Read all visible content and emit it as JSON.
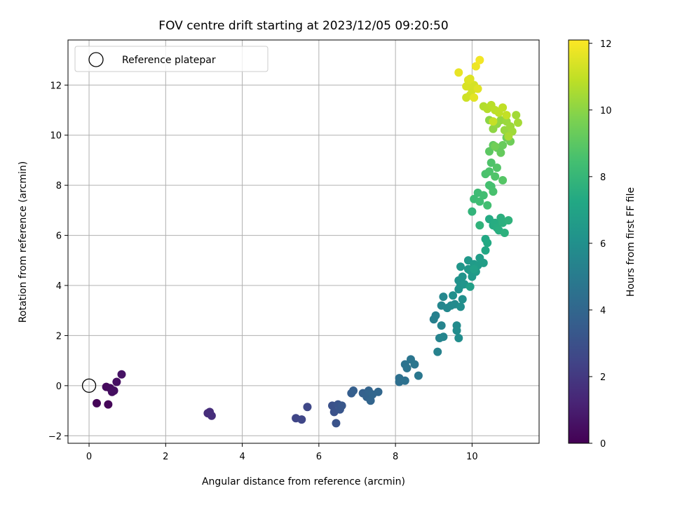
{
  "chart_data": {
    "type": "scatter",
    "title": "FOV centre drift starting at 2023/12/05 09:20:50",
    "xlabel": "Angular distance from reference (arcmin)",
    "ylabel": "Rotation from reference (arcmin)",
    "xlim": [
      -0.55,
      11.75
    ],
    "ylim": [
      -2.3,
      13.8
    ],
    "xticks": [
      0,
      2,
      4,
      6,
      8,
      10
    ],
    "yticks": [
      -2,
      0,
      2,
      4,
      6,
      8,
      10,
      12
    ],
    "grid": true,
    "legend": {
      "position": "top-left",
      "entries": [
        "Reference platepar"
      ]
    },
    "reference_point": {
      "x": 0,
      "y": 0,
      "label": "Reference platepar"
    },
    "colorbar": {
      "label": "Hours from first FF file",
      "range": [
        0,
        12.1
      ],
      "ticks": [
        0,
        2,
        4,
        6,
        8,
        10,
        12
      ],
      "colormap": "viridis"
    },
    "series": [
      {
        "points": [
          {
            "x": 0.2,
            "y": -0.7,
            "c": 0.1
          },
          {
            "x": 0.5,
            "y": -0.75,
            "c": 0.2
          },
          {
            "x": 0.45,
            "y": -0.05,
            "c": 0.3
          },
          {
            "x": 0.55,
            "y": -0.1,
            "c": 0.35
          },
          {
            "x": 0.6,
            "y": -0.25,
            "c": 0.4
          },
          {
            "x": 0.65,
            "y": -0.2,
            "c": 0.45
          },
          {
            "x": 0.72,
            "y": 0.15,
            "c": 0.5
          },
          {
            "x": 0.85,
            "y": 0.45,
            "c": 0.6
          },
          {
            "x": 3.1,
            "y": -1.1,
            "c": 1.5
          },
          {
            "x": 3.15,
            "y": -1.05,
            "c": 1.55
          },
          {
            "x": 3.2,
            "y": -1.2,
            "c": 1.6
          },
          {
            "x": 5.4,
            "y": -1.3,
            "c": 2.5
          },
          {
            "x": 5.55,
            "y": -1.35,
            "c": 2.55
          },
          {
            "x": 5.7,
            "y": -0.85,
            "c": 2.6
          },
          {
            "x": 6.35,
            "y": -0.8,
            "c": 3.0
          },
          {
            "x": 6.4,
            "y": -1.05,
            "c": 3.05
          },
          {
            "x": 6.45,
            "y": -1.5,
            "c": 3.1
          },
          {
            "x": 6.5,
            "y": -0.75,
            "c": 3.15
          },
          {
            "x": 6.55,
            "y": -0.95,
            "c": 3.2
          },
          {
            "x": 6.6,
            "y": -0.8,
            "c": 3.25
          },
          {
            "x": 6.85,
            "y": -0.3,
            "c": 3.6
          },
          {
            "x": 6.9,
            "y": -0.2,
            "c": 3.65
          },
          {
            "x": 7.15,
            "y": -0.3,
            "c": 3.75
          },
          {
            "x": 7.25,
            "y": -0.45,
            "c": 3.8
          },
          {
            "x": 7.3,
            "y": -0.2,
            "c": 3.85
          },
          {
            "x": 7.35,
            "y": -0.6,
            "c": 3.9
          },
          {
            "x": 7.4,
            "y": -0.35,
            "c": 3.95
          },
          {
            "x": 7.55,
            "y": -0.25,
            "c": 4.0
          },
          {
            "x": 8.1,
            "y": 0.15,
            "c": 4.4
          },
          {
            "x": 8.1,
            "y": 0.3,
            "c": 4.45
          },
          {
            "x": 8.25,
            "y": 0.2,
            "c": 4.5
          },
          {
            "x": 8.25,
            "y": 0.85,
            "c": 4.6
          },
          {
            "x": 8.3,
            "y": 0.7,
            "c": 4.65
          },
          {
            "x": 8.4,
            "y": 1.05,
            "c": 4.7
          },
          {
            "x": 8.5,
            "y": 0.85,
            "c": 4.75
          },
          {
            "x": 8.6,
            "y": 0.4,
            "c": 4.8
          },
          {
            "x": 9.0,
            "y": 2.65,
            "c": 5.2
          },
          {
            "x": 9.05,
            "y": 2.8,
            "c": 5.25
          },
          {
            "x": 9.1,
            "y": 1.35,
            "c": 5.3
          },
          {
            "x": 9.15,
            "y": 1.9,
            "c": 5.35
          },
          {
            "x": 9.2,
            "y": 2.4,
            "c": 5.4
          },
          {
            "x": 9.25,
            "y": 1.95,
            "c": 5.45
          },
          {
            "x": 9.2,
            "y": 3.2,
            "c": 5.5
          },
          {
            "x": 9.25,
            "y": 3.55,
            "c": 5.55
          },
          {
            "x": 9.35,
            "y": 3.1,
            "c": 5.6
          },
          {
            "x": 9.45,
            "y": 3.2,
            "c": 5.65
          },
          {
            "x": 9.55,
            "y": 3.25,
            "c": 5.7
          },
          {
            "x": 9.6,
            "y": 2.4,
            "c": 5.75
          },
          {
            "x": 9.6,
            "y": 2.2,
            "c": 5.8
          },
          {
            "x": 9.65,
            "y": 1.9,
            "c": 5.85
          },
          {
            "x": 9.7,
            "y": 3.15,
            "c": 5.9
          },
          {
            "x": 9.75,
            "y": 3.45,
            "c": 5.95
          },
          {
            "x": 9.5,
            "y": 3.6,
            "c": 6.0
          },
          {
            "x": 9.65,
            "y": 3.85,
            "c": 6.05
          },
          {
            "x": 9.65,
            "y": 4.2,
            "c": 6.1
          },
          {
            "x": 9.7,
            "y": 4.0,
            "c": 6.15
          },
          {
            "x": 9.75,
            "y": 4.35,
            "c": 6.2
          },
          {
            "x": 9.8,
            "y": 4.05,
            "c": 6.25
          },
          {
            "x": 9.7,
            "y": 4.75,
            "c": 6.3
          },
          {
            "x": 9.9,
            "y": 4.65,
            "c": 6.35
          },
          {
            "x": 9.9,
            "y": 5.0,
            "c": 6.4
          },
          {
            "x": 9.95,
            "y": 4.6,
            "c": 6.45
          },
          {
            "x": 10.0,
            "y": 4.35,
            "c": 6.5
          },
          {
            "x": 10.05,
            "y": 4.85,
            "c": 6.55
          },
          {
            "x": 10.1,
            "y": 4.55,
            "c": 6.6
          },
          {
            "x": 10.15,
            "y": 4.8,
            "c": 6.65
          },
          {
            "x": 10.2,
            "y": 5.1,
            "c": 6.7
          },
          {
            "x": 10.3,
            "y": 4.9,
            "c": 6.75
          },
          {
            "x": 9.95,
            "y": 3.95,
            "c": 6.8
          },
          {
            "x": 10.05,
            "y": 4.65,
            "c": 6.85
          },
          {
            "x": 10.35,
            "y": 5.4,
            "c": 7.2
          },
          {
            "x": 10.35,
            "y": 5.85,
            "c": 7.25
          },
          {
            "x": 10.4,
            "y": 5.7,
            "c": 7.3
          },
          {
            "x": 10.45,
            "y": 6.65,
            "c": 7.35
          },
          {
            "x": 10.55,
            "y": 6.4,
            "c": 7.4
          },
          {
            "x": 10.6,
            "y": 6.5,
            "c": 7.45
          },
          {
            "x": 10.65,
            "y": 6.3,
            "c": 7.5
          },
          {
            "x": 10.7,
            "y": 6.2,
            "c": 7.55
          },
          {
            "x": 10.75,
            "y": 6.7,
            "c": 7.6
          },
          {
            "x": 10.8,
            "y": 6.5,
            "c": 7.65
          },
          {
            "x": 10.85,
            "y": 6.1,
            "c": 7.7
          },
          {
            "x": 10.95,
            "y": 6.6,
            "c": 7.75
          },
          {
            "x": 10.2,
            "y": 6.4,
            "c": 7.8
          },
          {
            "x": 10.0,
            "y": 6.95,
            "c": 7.85
          },
          {
            "x": 10.05,
            "y": 7.45,
            "c": 8.2
          },
          {
            "x": 10.15,
            "y": 7.7,
            "c": 8.25
          },
          {
            "x": 10.2,
            "y": 7.35,
            "c": 8.3
          },
          {
            "x": 10.3,
            "y": 7.6,
            "c": 8.35
          },
          {
            "x": 10.4,
            "y": 7.2,
            "c": 8.4
          },
          {
            "x": 10.45,
            "y": 8.0,
            "c": 8.45
          },
          {
            "x": 10.5,
            "y": 7.95,
            "c": 8.5
          },
          {
            "x": 10.55,
            "y": 7.75,
            "c": 8.55
          },
          {
            "x": 10.35,
            "y": 8.45,
            "c": 8.6
          },
          {
            "x": 10.45,
            "y": 8.55,
            "c": 8.65
          },
          {
            "x": 10.5,
            "y": 8.9,
            "c": 8.7
          },
          {
            "x": 10.6,
            "y": 8.35,
            "c": 8.75
          },
          {
            "x": 10.65,
            "y": 8.7,
            "c": 8.8
          },
          {
            "x": 10.8,
            "y": 8.2,
            "c": 8.85
          },
          {
            "x": 10.45,
            "y": 9.35,
            "c": 9.0
          },
          {
            "x": 10.55,
            "y": 9.6,
            "c": 9.1
          },
          {
            "x": 10.65,
            "y": 9.5,
            "c": 9.15
          },
          {
            "x": 10.75,
            "y": 9.3,
            "c": 9.2
          },
          {
            "x": 10.8,
            "y": 9.6,
            "c": 9.25
          },
          {
            "x": 10.9,
            "y": 9.9,
            "c": 9.35
          },
          {
            "x": 11.0,
            "y": 9.75,
            "c": 9.4
          },
          {
            "x": 10.6,
            "y": 9.55,
            "c": 9.45
          },
          {
            "x": 10.45,
            "y": 10.6,
            "c": 10.0
          },
          {
            "x": 10.55,
            "y": 10.25,
            "c": 10.05
          },
          {
            "x": 10.65,
            "y": 10.45,
            "c": 10.1
          },
          {
            "x": 10.75,
            "y": 10.6,
            "c": 10.15
          },
          {
            "x": 10.85,
            "y": 10.2,
            "c": 10.2
          },
          {
            "x": 10.9,
            "y": 10.55,
            "c": 10.25
          },
          {
            "x": 11.0,
            "y": 10.35,
            "c": 10.3
          },
          {
            "x": 11.05,
            "y": 10.15,
            "c": 10.35
          },
          {
            "x": 11.15,
            "y": 10.8,
            "c": 10.4
          },
          {
            "x": 11.2,
            "y": 10.5,
            "c": 10.45
          },
          {
            "x": 10.95,
            "y": 9.95,
            "c": 10.5
          },
          {
            "x": 10.3,
            "y": 11.15,
            "c": 10.7
          },
          {
            "x": 10.4,
            "y": 11.05,
            "c": 10.75
          },
          {
            "x": 10.5,
            "y": 11.2,
            "c": 10.8
          },
          {
            "x": 10.6,
            "y": 11.0,
            "c": 10.85
          },
          {
            "x": 10.7,
            "y": 10.9,
            "c": 10.9
          },
          {
            "x": 10.8,
            "y": 11.1,
            "c": 10.95
          },
          {
            "x": 10.9,
            "y": 10.8,
            "c": 11.0
          },
          {
            "x": 10.55,
            "y": 10.55,
            "c": 11.05
          },
          {
            "x": 9.85,
            "y": 11.5,
            "c": 11.2
          },
          {
            "x": 9.95,
            "y": 11.6,
            "c": 11.25
          },
          {
            "x": 10.0,
            "y": 11.8,
            "c": 11.3
          },
          {
            "x": 10.05,
            "y": 12.0,
            "c": 11.35
          },
          {
            "x": 9.85,
            "y": 11.95,
            "c": 11.4
          },
          {
            "x": 9.9,
            "y": 12.2,
            "c": 11.45
          },
          {
            "x": 9.95,
            "y": 12.25,
            "c": 11.5
          },
          {
            "x": 10.15,
            "y": 11.85,
            "c": 11.55
          },
          {
            "x": 10.05,
            "y": 11.5,
            "c": 11.6
          },
          {
            "x": 9.65,
            "y": 12.5,
            "c": 11.7
          },
          {
            "x": 10.1,
            "y": 12.75,
            "c": 11.8
          },
          {
            "x": 10.2,
            "y": 13.0,
            "c": 11.9
          }
        ]
      }
    ]
  }
}
